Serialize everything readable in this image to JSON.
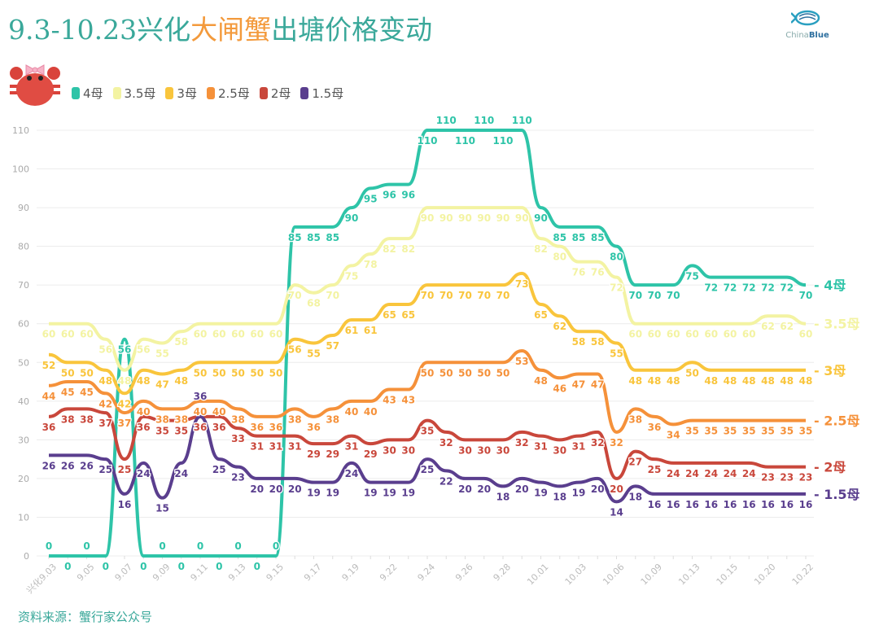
{
  "title": {
    "part1": "9.3-10.23兴化",
    "highlight": "大闸蟹",
    "part2": "出塘价格变动"
  },
  "logo": {
    "text_light": "China",
    "text_bold": "Blue"
  },
  "source": "资料来源：蟹行家公众号",
  "colors": {
    "title": "#3aa89a",
    "highlight": "#f39a3c"
  },
  "chart_data": {
    "type": "line",
    "title": "9.3-10.23兴化大闸蟹出塘价格变动",
    "ylim": [
      0,
      110
    ],
    "yticks": [
      0,
      10,
      20,
      30,
      40,
      50,
      60,
      70,
      80,
      90,
      100,
      110
    ],
    "grid": true,
    "legend": "top-left",
    "xtick_labels": [
      "兴化9.03",
      "9.05",
      "9.07",
      "9.09",
      "9.11",
      "9.13",
      "9.15",
      "9.17",
      "9.19",
      "9.22",
      "9.24",
      "9.26",
      "9.28",
      "10.01",
      "10.03",
      "10.06",
      "10.09",
      "10.13",
      "10.15",
      "10.20",
      "10.22"
    ],
    "point_count": 41,
    "series": [
      {
        "name": "4母",
        "color": "#2ec4a8",
        "values": [
          0,
          0,
          0,
          0,
          56,
          0,
          0,
          0,
          0,
          0,
          0,
          0,
          0,
          85,
          85,
          85,
          90,
          95,
          96,
          96,
          110,
          110,
          110,
          110,
          110,
          110,
          90,
          85,
          85,
          85,
          80,
          70,
          70,
          70,
          75,
          72,
          72,
          72,
          72,
          72,
          70
        ]
      },
      {
        "name": "3.5母",
        "color": "#f3f3a2",
        "values": [
          60,
          60,
          60,
          56,
          48,
          56,
          55,
          58,
          60,
          60,
          60,
          60,
          60,
          70,
          68,
          70,
          75,
          78,
          82,
          82,
          90,
          90,
          90,
          90,
          90,
          90,
          82,
          80,
          76,
          76,
          72,
          60,
          60,
          60,
          60,
          60,
          60,
          60,
          62,
          62,
          60
        ]
      },
      {
        "name": "3母",
        "color": "#f9c53c",
        "values": [
          52,
          50,
          50,
          48,
          42,
          48,
          47,
          48,
          50,
          50,
          50,
          50,
          50,
          56,
          55,
          57,
          61,
          61,
          65,
          65,
          70,
          70,
          70,
          70,
          70,
          73,
          65,
          62,
          58,
          58,
          55,
          48,
          48,
          48,
          50,
          48,
          48,
          48,
          48,
          48,
          48
        ]
      },
      {
        "name": "2.5母",
        "color": "#f5913a",
        "values": [
          44,
          45,
          45,
          42,
          37,
          40,
          38,
          38,
          40,
          40,
          38,
          36,
          36,
          38,
          36,
          38,
          40,
          40,
          43,
          43,
          50,
          50,
          50,
          50,
          50,
          53,
          48,
          46,
          47,
          47,
          32,
          38,
          36,
          34,
          35,
          35,
          35,
          35,
          35,
          35,
          35
        ]
      },
      {
        "name": "2母",
        "color": "#c9473b",
        "values": [
          36,
          38,
          38,
          37,
          25,
          36,
          35,
          35,
          36,
          36,
          33,
          31,
          31,
          31,
          29,
          29,
          31,
          29,
          30,
          30,
          35,
          32,
          30,
          30,
          30,
          32,
          31,
          30,
          31,
          32,
          20,
          27,
          25,
          24,
          24,
          24,
          24,
          24,
          23,
          23,
          23
        ]
      },
      {
        "name": "1.5母",
        "color": "#5a3e8e",
        "values": [
          26,
          26,
          26,
          25,
          16,
          24,
          15,
          24,
          36,
          25,
          23,
          20,
          20,
          20,
          19,
          19,
          24,
          19,
          19,
          19,
          25,
          22,
          20,
          20,
          18,
          20,
          19,
          18,
          19,
          20,
          14,
          18,
          16,
          16,
          16,
          16,
          16,
          16,
          16,
          16,
          16
        ]
      }
    ]
  }
}
